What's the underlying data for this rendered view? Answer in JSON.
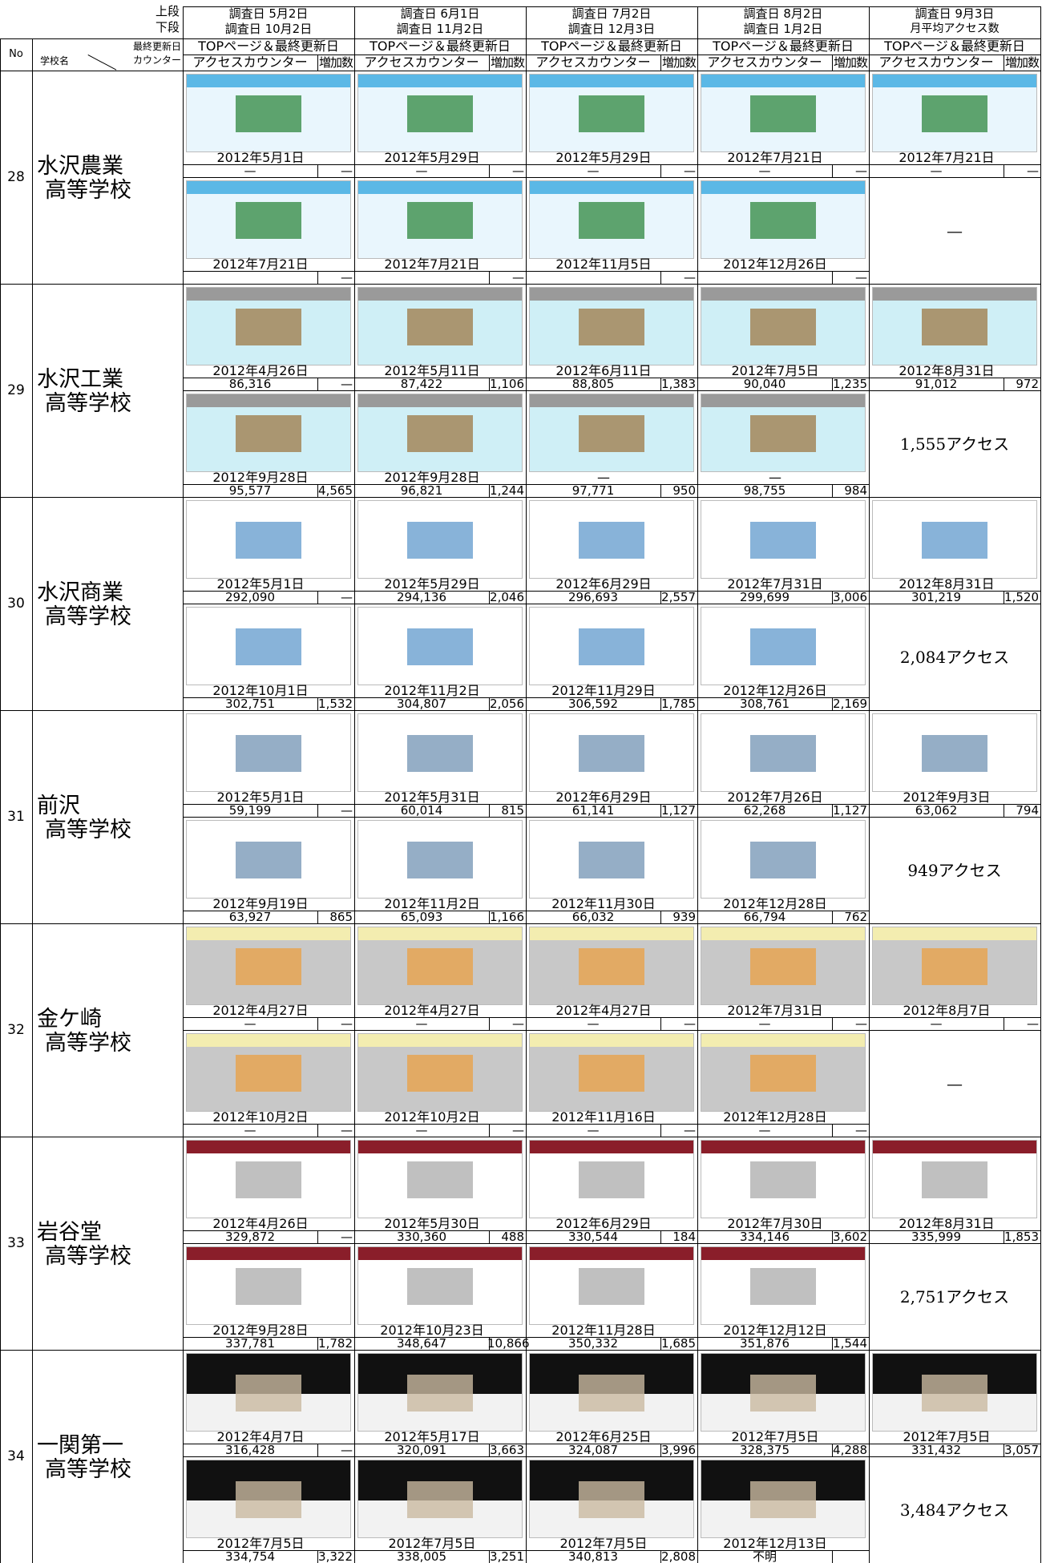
{
  "header": {
    "upper_label": "上段",
    "lower_label": "下段",
    "no": "No",
    "school": "学校名",
    "last_updated": "最終更新日",
    "counter": "カウンター",
    "columns": [
      {
        "survey_upper": "調査日 5月2日",
        "survey_lower": "調査日 10月2日",
        "top_page": "TOPページ＆最終更新日",
        "access_counter": "アクセスカウンター",
        "increase": "増加数"
      },
      {
        "survey_upper": "調査日 6月1日",
        "survey_lower": "調査日 11月2日",
        "top_page": "TOPページ＆最終更新日",
        "access_counter": "アクセスカウンター",
        "increase": "増加数"
      },
      {
        "survey_upper": "調査日 7月2日",
        "survey_lower": "調査日 12月3日",
        "top_page": "TOPページ＆最終更新日",
        "access_counter": "アクセスカウンター",
        "increase": "増加数"
      },
      {
        "survey_upper": "調査日 8月2日",
        "survey_lower": "調査日 1月2日",
        "top_page": "TOPページ＆最終更新日",
        "access_counter": "アクセスカウンター",
        "increase": "増加数"
      },
      {
        "survey_upper": "調査日 9月3日",
        "survey_lower": "月平均アクセス数",
        "top_page": "TOPページ＆最終更新日",
        "access_counter": "アクセスカウンター",
        "increase": "増加数"
      }
    ]
  },
  "schools": [
    {
      "no": 28,
      "name_line1": "水沢農業",
      "name_line2": "高等学校",
      "upper": [
        {
          "date": "2012年5月1日",
          "counter": "—",
          "increase": "—"
        },
        {
          "date": "2012年5月29日",
          "counter": "—",
          "increase": "—"
        },
        {
          "date": "2012年5月29日",
          "counter": "—",
          "increase": "—"
        },
        {
          "date": "2012年7月21日",
          "counter": "—",
          "increase": "—"
        },
        {
          "date": "2012年7月21日",
          "counter": "—",
          "increase": "—"
        }
      ],
      "lower": [
        {
          "date": "2012年7月21日",
          "counter": null,
          "increase": "—"
        },
        {
          "date": "2012年7月21日",
          "counter": null,
          "increase": "—"
        },
        {
          "date": "2012年11月5日",
          "counter": null,
          "increase": "—"
        },
        {
          "date": "2012年12月26日",
          "counter": null,
          "increase": "—"
        }
      ],
      "monthly_average": "—"
    },
    {
      "no": 29,
      "name_line1": "水沢工業",
      "name_line2": "高等学校",
      "upper": [
        {
          "date": "2012年4月26日",
          "counter": "86,316",
          "increase": "—"
        },
        {
          "date": "2012年5月11日",
          "counter": "87,422",
          "increase": "1,106"
        },
        {
          "date": "2012年6月11日",
          "counter": "88,805",
          "increase": "1,383"
        },
        {
          "date": "2012年7月5日",
          "counter": "90,040",
          "increase": "1,235"
        },
        {
          "date": "2012年8月31日",
          "counter": "91,012",
          "increase": "972"
        }
      ],
      "lower": [
        {
          "date": "2012年9月28日",
          "counter": "95,577",
          "increase": "4,565"
        },
        {
          "date": "2012年9月28日",
          "counter": "96,821",
          "increase": "1,244"
        },
        {
          "date": "—",
          "counter": "97,771",
          "increase": "950"
        },
        {
          "date": "—",
          "counter": "98,755",
          "increase": "984"
        }
      ],
      "monthly_average": "1,555アクセス"
    },
    {
      "no": 30,
      "name_line1": "水沢商業",
      "name_line2": "高等学校",
      "upper": [
        {
          "date": "2012年5月1日",
          "counter": "292,090",
          "increase": "—"
        },
        {
          "date": "2012年5月29日",
          "counter": "294,136",
          "increase": "2,046"
        },
        {
          "date": "2012年6月29日",
          "counter": "296,693",
          "increase": "2,557"
        },
        {
          "date": "2012年7月31日",
          "counter": "299,699",
          "increase": "3,006"
        },
        {
          "date": "2012年8月31日",
          "counter": "301,219",
          "increase": "1,520"
        }
      ],
      "lower": [
        {
          "date": "2012年10月1日",
          "counter": "302,751",
          "increase": "1,532"
        },
        {
          "date": "2012年11月2日",
          "counter": "304,807",
          "increase": "2,056"
        },
        {
          "date": "2012年11月29日",
          "counter": "306,592",
          "increase": "1,785"
        },
        {
          "date": "2012年12月26日",
          "counter": "308,761",
          "increase": "2,169"
        }
      ],
      "monthly_average": "2,084アクセス"
    },
    {
      "no": 31,
      "name_line1": "前沢",
      "name_line2": "高等学校",
      "upper": [
        {
          "date": "2012年5月1日",
          "counter": "59,199",
          "increase": "—"
        },
        {
          "date": "2012年5月31日",
          "counter": "60,014",
          "increase": "815"
        },
        {
          "date": "2012年6月29日",
          "counter": "61,141",
          "increase": "1,127"
        },
        {
          "date": "2012年7月26日",
          "counter": "62,268",
          "increase": "1,127"
        },
        {
          "date": "2012年9月3日",
          "counter": "63,062",
          "increase": "794"
        }
      ],
      "lower": [
        {
          "date": "2012年9月19日",
          "counter": "63,927",
          "increase": "865"
        },
        {
          "date": "2012年11月2日",
          "counter": "65,093",
          "increase": "1,166"
        },
        {
          "date": "2012年11月30日",
          "counter": "66,032",
          "increase": "939"
        },
        {
          "date": "2012年12月28日",
          "counter": "66,794",
          "increase": "762"
        }
      ],
      "monthly_average": "949アクセス"
    },
    {
      "no": 32,
      "name_line1": "金ケ崎",
      "name_line2": "高等学校",
      "upper": [
        {
          "date": "2012年4月27日",
          "counter": "—",
          "increase": "—"
        },
        {
          "date": "2012年4月27日",
          "counter": "—",
          "increase": "—"
        },
        {
          "date": "2012年4月27日",
          "counter": "—",
          "increase": "—"
        },
        {
          "date": "2012年7月31日",
          "counter": "—",
          "increase": "—"
        },
        {
          "date": "2012年8月7日",
          "counter": "—",
          "increase": "—"
        }
      ],
      "lower": [
        {
          "date": "2012年10月2日",
          "counter": "—",
          "increase": "—"
        },
        {
          "date": "2012年10月2日",
          "counter": "—",
          "increase": "—"
        },
        {
          "date": "2012年11月16日",
          "counter": "—",
          "increase": "—"
        },
        {
          "date": "2012年12月28日",
          "counter": "—",
          "increase": "—"
        }
      ],
      "monthly_average": "—"
    },
    {
      "no": 33,
      "name_line1": "岩谷堂",
      "name_line2": "高等学校",
      "upper": [
        {
          "date": "2012年4月26日",
          "counter": "329,872",
          "increase": "—"
        },
        {
          "date": "2012年5月30日",
          "counter": "330,360",
          "increase": "488"
        },
        {
          "date": "2012年6月29日",
          "counter": "330,544",
          "increase": "184"
        },
        {
          "date": "2012年7月30日",
          "counter": "334,146",
          "increase": "3,602"
        },
        {
          "date": "2012年8月31日",
          "counter": "335,999",
          "increase": "1,853"
        }
      ],
      "lower": [
        {
          "date": "2012年9月28日",
          "counter": "337,781",
          "increase": "1,782"
        },
        {
          "date": "2012年10月23日",
          "counter": "348,647",
          "increase": "10,866"
        },
        {
          "date": "2012年11月28日",
          "counter": "350,332",
          "increase": "1,685"
        },
        {
          "date": "2012年12月12日",
          "counter": "351,876",
          "increase": "1,544"
        }
      ],
      "monthly_average": "2,751アクセス"
    },
    {
      "no": 34,
      "name_line1": "一関第一",
      "name_line2": "高等学校",
      "upper": [
        {
          "date": "2012年4月7日",
          "counter": "316,428",
          "increase": "—"
        },
        {
          "date": "2012年5月17日",
          "counter": "320,091",
          "increase": "3,663"
        },
        {
          "date": "2012年6月25日",
          "counter": "324,087",
          "increase": "3,996"
        },
        {
          "date": "2012年7月5日",
          "counter": "328,375",
          "increase": "4,288"
        },
        {
          "date": "2012年7月5日",
          "counter": "331,432",
          "increase": "3,057"
        }
      ],
      "lower": [
        {
          "date": "2012年7月5日",
          "counter": "334,754",
          "increase": "3,322"
        },
        {
          "date": "2012年7月5日",
          "counter": "338,005",
          "increase": "3,251"
        },
        {
          "date": "2012年7月5日",
          "counter": "340,813",
          "increase": "2,808"
        },
        {
          "date": "2012年12月13日",
          "counter": "不明",
          "increase": null
        }
      ],
      "monthly_average": "3,484アクセス"
    }
  ]
}
